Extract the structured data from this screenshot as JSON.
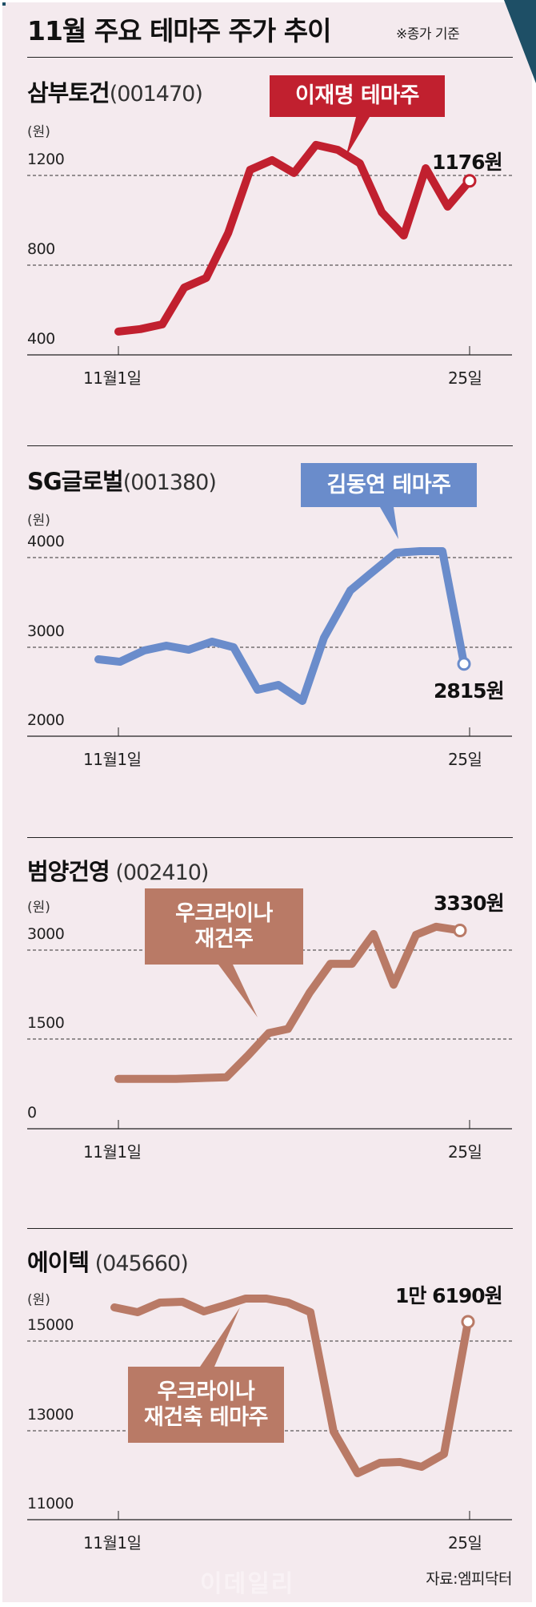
{
  "header": {
    "title": "11월 주요 테마주 주가 추이",
    "note": "※종가 기준"
  },
  "footer": {
    "source": "자료:엠피닥터",
    "watermark": "이데일리"
  },
  "colors": {
    "background": "#f4eaee",
    "corner_accent": "#1e4f66",
    "samboo": "#c1202f",
    "sg": "#6a8ccb",
    "brown": "#b97a66"
  },
  "chart_data": [
    {
      "type": "line",
      "title": "삼부토건",
      "code": "(001470)",
      "callout": "이재명 테마주",
      "ylabel": "(원)",
      "yticks": [
        "1200",
        "800",
        "400"
      ],
      "ytick_values": [
        1200,
        800,
        400
      ],
      "ylim": [
        400,
        1300
      ],
      "x_start_label": "11월1일",
      "x_end_label": "25일",
      "end_label": "1176원",
      "end_value": 1176,
      "x": [
        1,
        2,
        3,
        4,
        5,
        6,
        7,
        8,
        9,
        10,
        11,
        12,
        13,
        14,
        15,
        16,
        17
      ],
      "values": [
        504,
        515,
        536,
        700,
        743,
        943,
        1225,
        1268,
        1211,
        1336,
        1314,
        1254,
        1036,
        932,
        1232,
        1061,
        1176
      ],
      "color": "#c1202f"
    },
    {
      "type": "line",
      "title": "SG글로벌",
      "code": "(001380)",
      "callout": "김동연 테마주",
      "ylabel": "(원)",
      "yticks": [
        "4000",
        "3000",
        "2000"
      ],
      "ytick_values": [
        4000,
        3000,
        2000
      ],
      "ylim": [
        2000,
        4200
      ],
      "x_start_label": "11월1일",
      "x_end_label": "25일",
      "end_label": "2815원",
      "end_value": 2815,
      "x": [
        0,
        1,
        2,
        3,
        4,
        5,
        6,
        7,
        8,
        9,
        10,
        11,
        12,
        13,
        14,
        15,
        16
      ],
      "values": [
        2866,
        2839,
        2964,
        3018,
        2973,
        3063,
        3000,
        2527,
        2580,
        2402,
        3107,
        3634,
        3813,
        4054,
        4071,
        4071,
        2815
      ],
      "color": "#6a8ccb"
    },
    {
      "type": "line",
      "title": "범양건영",
      "code": "(002410)",
      "callout": "우크라이나\n재건주",
      "ylabel": "(원)",
      "yticks": [
        "3000",
        "1500",
        "0"
      ],
      "ytick_values": [
        3000,
        1500,
        0
      ],
      "ylim": [
        0,
        3500
      ],
      "x_start_label": "11월1일",
      "x_end_label": "25일",
      "end_label": "3330원",
      "end_value": 3330,
      "x": [
        1,
        4,
        6,
        7,
        8,
        9,
        10,
        11,
        12,
        13,
        14,
        15,
        16,
        17
      ],
      "values": [
        838,
        838,
        865,
        1230,
        1608,
        1676,
        2284,
        2770,
        2770,
        3270,
        2419,
        3257,
        3392,
        3330
      ],
      "color": "#b97a66"
    },
    {
      "type": "line",
      "title": "에이텍",
      "code": "(045660)",
      "callout": "우크라이나\n재건축 테마주",
      "ylabel": "(원)",
      "yticks": [
        "15000",
        "13000",
        "11000"
      ],
      "ytick_values": [
        15000,
        13000,
        11000
      ],
      "ylim": [
        11000,
        16500
      ],
      "x_start_label": "11월1일",
      "x_end_label": "25일",
      "end_label": "1만 6190원",
      "end_value": 16190,
      "x": [
        1,
        2,
        3,
        4,
        5,
        6,
        7,
        8,
        9,
        10,
        11,
        12,
        13,
        14,
        15,
        16,
        17
      ],
      "values": [
        15750,
        15643,
        15857,
        15875,
        15661,
        15804,
        15946,
        15946,
        15857,
        15643,
        12982,
        12054,
        12286,
        12304,
        12196,
        12482,
        16190
      ],
      "color": "#b97a66"
    }
  ]
}
